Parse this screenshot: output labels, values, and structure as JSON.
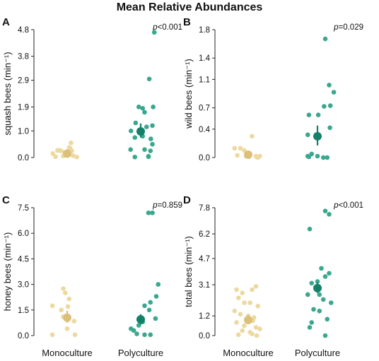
{
  "title": "Mean Relative Abundances",
  "categories": [
    "Monoculture",
    "Polyculture"
  ],
  "colors": {
    "monoculture_point": "#ecd9a0",
    "monoculture_mean": "#dcc07a",
    "polyculture_point": "#3aa88e",
    "polyculture_mean": "#148068"
  },
  "chart_data": [
    {
      "type": "scatter",
      "panel": "A",
      "ylabel": "squash bees (min⁻¹)",
      "yticks": [
        "0.0",
        "1.0",
        "1.9",
        "2.9",
        "3.8",
        "4.8"
      ],
      "ylim": [
        0,
        4.8
      ],
      "p_prefix": "p",
      "p_value": "<0.001",
      "series": [
        {
          "category": "Monoculture",
          "x_jitter": [
            -0.37,
            -0.25,
            -0.2,
            -0.15,
            -0.1,
            -0.05,
            0.0,
            0.05,
            0.1,
            0.15,
            0.25,
            -0.3,
            0.02,
            0.08,
            0.12
          ],
          "values": [
            0.15,
            0.27,
            0.27,
            0.25,
            0.06,
            0.15,
            0.2,
            0.38,
            0.55,
            0.07,
            0.02,
            0.03,
            0.08,
            0.35,
            0.25
          ],
          "mean": 0.15,
          "ci": [
            0.08,
            0.24
          ]
        },
        {
          "category": "Polyculture",
          "x_jitter": [
            0.35,
            0.22,
            0.32,
            0.05,
            -0.05,
            0.1,
            -0.13,
            0.15,
            0.3,
            -0.25,
            -0.15,
            0.05,
            0.26,
            0.3,
            -0.26,
            0.25,
            0.1,
            0.2,
            -0.15,
            0.2
          ],
          "values": [
            4.7,
            2.95,
            1.9,
            1.85,
            1.9,
            1.7,
            1.3,
            1.15,
            1.2,
            1.0,
            0.75,
            0.8,
            0.7,
            0.5,
            0.3,
            0.25,
            0.3,
            0.05,
            0.02,
            0.03
          ],
          "mean": 0.98,
          "ci": [
            0.75,
            1.28
          ]
        }
      ]
    },
    {
      "type": "scatter",
      "panel": "B",
      "ylabel": "wild bees (min⁻¹)",
      "yticks": [
        "0.0",
        "0.4",
        "0.7",
        "1.1",
        "1.4",
        "1.8"
      ],
      "ylim": [
        0,
        1.8
      ],
      "p_prefix": "p",
      "p_value": "=0.029",
      "series": [
        {
          "category": "Monoculture",
          "x_jitter": [
            -0.35,
            -0.2,
            -0.1,
            0.0,
            0.1,
            0.2,
            0.3,
            -0.28,
            -0.05,
            0.22,
            0.25
          ],
          "values": [
            0.13,
            0.13,
            0.1,
            0.05,
            0.3,
            0.02,
            0.02,
            0.03,
            0.02,
            0.01,
            0.0
          ],
          "mean": 0.04,
          "ci": [
            0.02,
            0.07
          ]
        },
        {
          "category": "Polyculture",
          "x_jitter": [
            0.2,
            0.3,
            0.42,
            0.33,
            0.17,
            0.02,
            -0.22,
            0.32,
            -0.25,
            0.15,
            0.0,
            -0.15,
            -0.25,
            -0.22,
            0.25
          ],
          "values": [
            1.67,
            1.02,
            0.92,
            0.73,
            0.72,
            0.6,
            0.6,
            0.42,
            0.32,
            0.0,
            0.02,
            0.05,
            0.02,
            0.01,
            0.0
          ],
          "mean": 0.3,
          "ci": [
            0.17,
            0.45
          ]
        }
      ]
    },
    {
      "type": "scatter",
      "panel": "C",
      "ylabel": "honey bees (min⁻¹)",
      "yticks": [
        "0.0",
        "1.5",
        "3.0",
        "4.5",
        "6.0",
        "7.5"
      ],
      "ylim": [
        0,
        7.5
      ],
      "p_prefix": "p",
      "p_value": "=0.859",
      "series": [
        {
          "category": "Monoculture",
          "x_jitter": [
            -0.38,
            -0.1,
            -0.05,
            0.05,
            0.02,
            -0.15,
            -0.1,
            0.18,
            0.0,
            -0.38,
            0.2
          ],
          "values": [
            1.75,
            2.75,
            2.5,
            2.15,
            1.7,
            1.5,
            1.1,
            0.85,
            0.4,
            0.05,
            0.05
          ],
          "mean": 1.05,
          "ci": [
            0.75,
            1.45
          ]
        },
        {
          "category": "Polyculture",
          "x_jitter": [
            0.2,
            0.3,
            0.45,
            0.4,
            0.25,
            0.1,
            0.22,
            0.38,
            0.05,
            -0.05,
            -0.25,
            -0.18,
            -0.1,
            0.1,
            0.25
          ],
          "values": [
            7.2,
            7.2,
            3.0,
            2.3,
            1.95,
            1.75,
            1.5,
            1.0,
            0.8,
            0.6,
            0.4,
            0.3,
            0.1,
            0.05,
            0.05
          ],
          "mean": 0.95,
          "ci": [
            0.65,
            1.25
          ]
        }
      ]
    },
    {
      "type": "scatter",
      "panel": "D",
      "ylabel": "total bees (min⁻¹)",
      "yticks": [
        "0.0",
        "1.2",
        "3.1",
        "4.7",
        "6.2",
        "7.8"
      ],
      "ylim": [
        0,
        7.8
      ],
      "p_prefix": "p",
      "p_value": "<0.001",
      "series": [
        {
          "category": "Monoculture",
          "x_jitter": [
            -0.3,
            -0.15,
            0.1,
            0.2,
            -0.25,
            -0.1,
            0.05,
            0.25,
            -0.35,
            -0.2,
            0.0,
            0.15,
            -0.05,
            0.12,
            -0.3,
            -0.1,
            0.2,
            0.3,
            -0.15,
            0.05,
            0.1,
            -0.25,
            0.22
          ],
          "values": [
            2.8,
            2.6,
            2.8,
            3.0,
            2.3,
            2.0,
            2.0,
            1.8,
            1.5,
            1.3,
            1.2,
            1.1,
            1.0,
            0.9,
            0.8,
            0.6,
            0.5,
            0.4,
            0.3,
            0.2,
            0.1,
            0.05,
            0.0
          ],
          "mean": 0.95,
          "ci": [
            0.7,
            1.25
          ]
        },
        {
          "category": "Polyculture",
          "x_jitter": [
            0.2,
            0.3,
            -0.2,
            0.1,
            0.3,
            0.2,
            -0.15,
            0.0,
            -0.25,
            0.05,
            0.15,
            0.35,
            -0.1,
            0.05,
            0.25,
            -0.15,
            -0.2,
            0.2
          ],
          "values": [
            7.6,
            7.4,
            6.5,
            4.1,
            3.8,
            3.6,
            3.2,
            3.3,
            2.5,
            2.5,
            2.2,
            2.0,
            1.6,
            1.5,
            1.0,
            0.8,
            0.5,
            0.0
          ],
          "mean": 2.9,
          "ci": [
            2.6,
            3.25
          ]
        }
      ]
    }
  ]
}
